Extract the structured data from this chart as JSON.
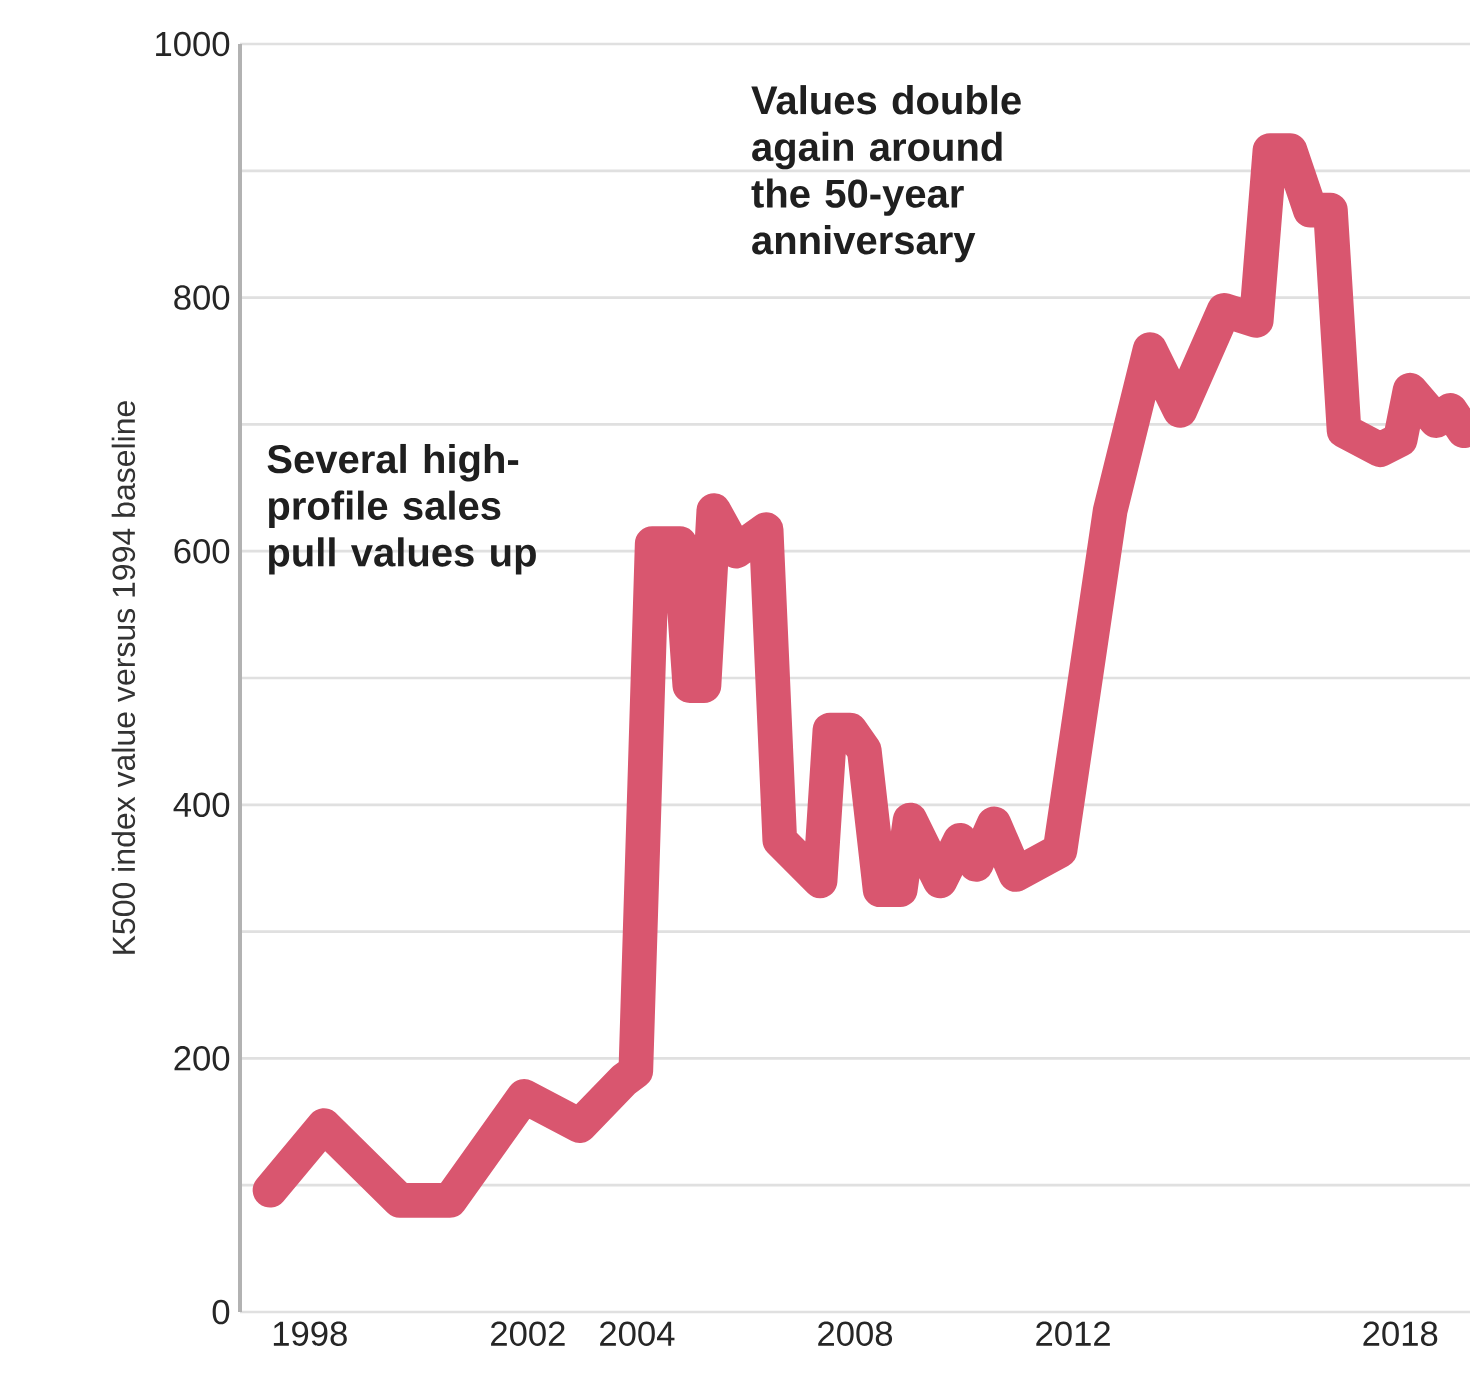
{
  "chart_data": {
    "type": "line",
    "ylabel": "K500 index value versus 1994 baseline",
    "annotations": [
      "Several high-profile sales pull values up",
      "Values double again around the 50-year anniversary"
    ],
    "x": [
      1997.27,
      1998.26,
      1999.65,
      2000.57,
      2001.93,
      2002.95,
      2003.76,
      2003.98,
      2004.28,
      2004.79,
      2004.97,
      2005.23,
      2005.41,
      2005.82,
      2006.37,
      2006.62,
      2007.36,
      2007.54,
      2007.91,
      2008.17,
      2008.46,
      2008.83,
      2009.01,
      2009.56,
      2009.93,
      2010.22,
      2010.55,
      2010.95,
      2011.76,
      2012.68,
      2013.41,
      2013.96,
      2014.77,
      2015.36,
      2015.61,
      2015.98,
      2016.35,
      2016.72,
      2016.97,
      2017.63,
      2018.0,
      2018.18,
      2018.66,
      2018.92,
      2019.17
    ],
    "series": [
      {
        "color": "#d9566f",
        "values": [
          96,
          147,
          88,
          88,
          170,
          147,
          183,
          190,
          606,
          606,
          494,
          494,
          632,
          600,
          617,
          372,
          340,
          459,
          459,
          443,
          333,
          333,
          388,
          340,
          372,
          353,
          385,
          345,
          364,
          632,
          759,
          711,
          790,
          782,
          916,
          916,
          869,
          869,
          695,
          680,
          688,
          727,
          703,
          711,
          695
        ]
      }
    ],
    "xlim": [
      1996.72,
      2019.28
    ],
    "xticks": [
      1998,
      2002,
      2004,
      2008,
      2012,
      2018
    ],
    "ylim": [
      0,
      1000
    ],
    "yticks": [
      0,
      {
        "value": 100,
        "label": null
      },
      200,
      {
        "value": 300,
        "label": null
      },
      400,
      {
        "value": 500,
        "label": null
      },
      600,
      {
        "value": 700,
        "label": null
      },
      800,
      {
        "value": 900,
        "label": null
      },
      1000
    ],
    "grid": "y",
    "marker": "none",
    "line_style": "solid"
  }
}
